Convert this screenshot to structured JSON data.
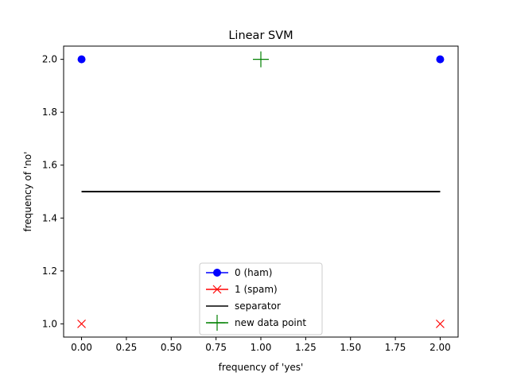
{
  "chart_data": {
    "type": "scatter",
    "title": "Linear SVM",
    "xlabel": "frequency of 'yes'",
    "ylabel": "frequency of 'no'",
    "xlim": [
      -0.1,
      2.1
    ],
    "ylim": [
      0.95,
      2.05
    ],
    "xticks": [
      "0.00",
      "0.25",
      "0.50",
      "0.75",
      "1.00",
      "1.25",
      "1.50",
      "1.75",
      "2.00"
    ],
    "xtick_values": [
      0,
      0.25,
      0.5,
      0.75,
      1.0,
      1.25,
      1.5,
      1.75,
      2.0
    ],
    "yticks": [
      "1.0",
      "1.2",
      "1.4",
      "1.6",
      "1.8",
      "2.0"
    ],
    "ytick_values": [
      1.0,
      1.2,
      1.4,
      1.6,
      1.8,
      2.0
    ],
    "grid": false,
    "legend_position": "bottom-center",
    "series": [
      {
        "name": "0 (ham)",
        "kind": "points",
        "marker": "circle",
        "color": "#0000ff",
        "points": [
          [
            0,
            2
          ],
          [
            2,
            2
          ]
        ]
      },
      {
        "name": "1 (spam)",
        "kind": "points",
        "marker": "x",
        "color": "#ff0000",
        "points": [
          [
            0,
            1
          ],
          [
            2,
            1
          ]
        ]
      },
      {
        "name": "separator",
        "kind": "line",
        "color": "#000000",
        "points": [
          [
            0,
            1.5
          ],
          [
            2,
            1.5
          ]
        ]
      },
      {
        "name": "new data point",
        "kind": "points",
        "marker": "plus",
        "color": "#008000",
        "points": [
          [
            1,
            2
          ]
        ]
      }
    ]
  }
}
